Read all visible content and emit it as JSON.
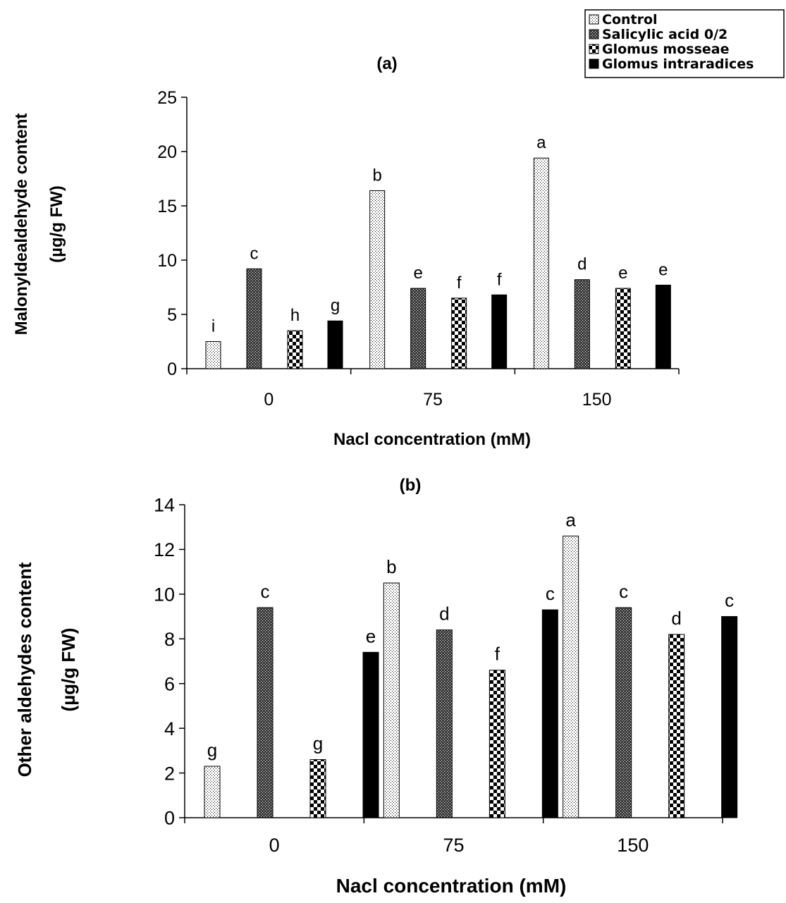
{
  "legend": {
    "items": [
      {
        "label": "Control",
        "pattern": "dots"
      },
      {
        "label": "Salicylic acid 0/2",
        "pattern": "dense"
      },
      {
        "label": "Glomus mosseae",
        "pattern": "checker"
      },
      {
        "label": "Glomus intraradices",
        "pattern": "solid"
      }
    ]
  },
  "chart_data": [
    {
      "type": "bar",
      "title": "(a)",
      "xlabel": "Nacl concentration (mM)",
      "ylabel": [
        "Malonyldealdehyde content",
        "(µg/g FW)"
      ],
      "ylim": [
        0,
        25
      ],
      "yticks": [
        0,
        5,
        10,
        15,
        20,
        25
      ],
      "categories": [
        "0",
        "75",
        "150"
      ],
      "series": [
        {
          "name": "Control",
          "values": [
            2.5,
            16.4,
            19.4
          ],
          "letters": [
            "i",
            "b",
            "a"
          ]
        },
        {
          "name": "Salicylic acid 0/2",
          "values": [
            9.2,
            7.4,
            8.2
          ],
          "letters": [
            "c",
            "e",
            "d"
          ]
        },
        {
          "name": "Glomus mosseae",
          "values": [
            3.5,
            6.5,
            7.4
          ],
          "letters": [
            "h",
            "f",
            "e"
          ]
        },
        {
          "name": "Glomus intraradices",
          "values": [
            4.4,
            6.8,
            7.7
          ],
          "letters": [
            "g",
            "f",
            "e"
          ]
        }
      ],
      "grid": false
    },
    {
      "type": "bar",
      "title": "(b)",
      "xlabel": "Nacl concentration (mM)",
      "ylabel": [
        "Other aldehydes content",
        "(µg/g FW)"
      ],
      "ylim": [
        0,
        14
      ],
      "yticks": [
        0,
        2,
        4,
        6,
        8,
        10,
        12,
        14
      ],
      "categories": [
        "0",
        "75",
        "150"
      ],
      "series": [
        {
          "name": "Control",
          "values": [
            2.3,
            10.5,
            12.6
          ],
          "letters": [
            "g",
            "b",
            "a"
          ]
        },
        {
          "name": "Salicylic acid 0/2",
          "values": [
            9.4,
            8.4,
            9.4
          ],
          "letters": [
            "c",
            "d",
            "c"
          ]
        },
        {
          "name": "Glomus mosseae",
          "values": [
            2.6,
            6.6,
            8.2
          ],
          "letters": [
            "g",
            "f",
            "d"
          ]
        },
        {
          "name": "Glomus intraradices",
          "values": [
            7.4,
            9.3,
            9.0
          ],
          "letters": [
            "e",
            "c",
            "c"
          ]
        }
      ],
      "grid": false
    }
  ]
}
